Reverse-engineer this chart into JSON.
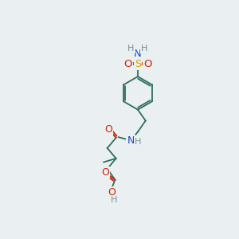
{
  "background_color": "#eaf0f2",
  "atom_colors": {
    "C": "#2d6e5e",
    "H": "#7a9090",
    "N": "#1a44cc",
    "O": "#cc2200",
    "S": "#ccaa00"
  },
  "bond_color": "#2d6e5e",
  "figsize": [
    3.0,
    3.0
  ],
  "dpi": 100
}
